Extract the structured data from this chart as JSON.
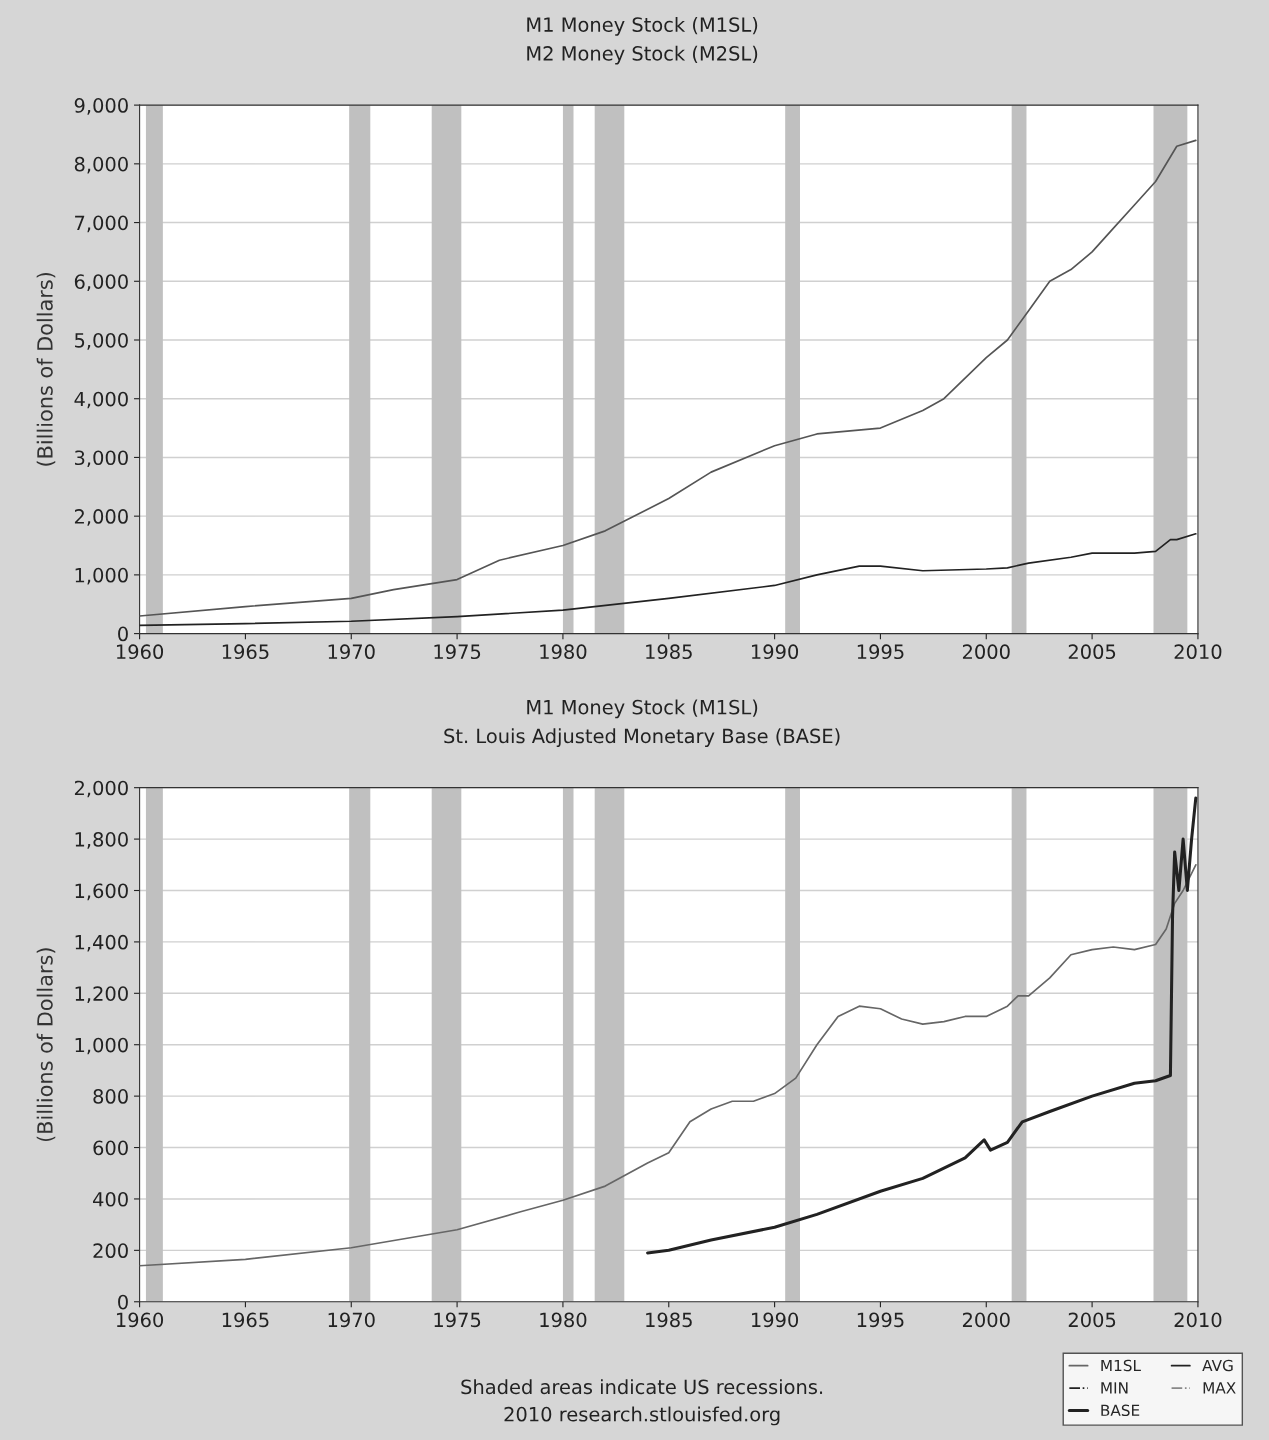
{
  "chart_data": [
    {
      "type": "line",
      "title": "M1 Money Stock (M1SL)",
      "subtitle": "M2 Money Stock (M2SL)",
      "ylabel": "(Billions of Dollars)",
      "xlim": [
        1960,
        2010
      ],
      "xticks": [
        1960,
        1965,
        1970,
        1975,
        1980,
        1985,
        1990,
        1995,
        2000,
        2005,
        2010
      ],
      "ylim": [
        0,
        9000
      ],
      "yticks": [
        {
          "value": 0,
          "label": "0"
        },
        {
          "value": 1000,
          "label": "1,000"
        },
        {
          "value": 2000,
          "label": "2,000"
        },
        {
          "value": 3000,
          "label": "3,000"
        },
        {
          "value": 4000,
          "label": "4,000"
        },
        {
          "value": 5000,
          "label": "5,000"
        },
        {
          "value": 6000,
          "label": "6,000"
        },
        {
          "value": 7000,
          "label": "7,000"
        },
        {
          "value": 8000,
          "label": "8,000"
        },
        {
          "value": 9000,
          "label": "9,000"
        }
      ],
      "grid": "y",
      "legend": false,
      "bands": [
        {
          "axis": "x",
          "from": 1960.3,
          "to": 1961.1,
          "color": "#c0c0c0"
        },
        {
          "axis": "x",
          "from": 1969.9,
          "to": 1970.9,
          "color": "#c0c0c0"
        },
        {
          "axis": "x",
          "from": 1973.8,
          "to": 1975.2,
          "color": "#c0c0c0"
        },
        {
          "axis": "x",
          "from": 1980.0,
          "to": 1980.5,
          "color": "#c0c0c0"
        },
        {
          "axis": "x",
          "from": 1981.5,
          "to": 1982.9,
          "color": "#c0c0c0"
        },
        {
          "axis": "x",
          "from": 1990.5,
          "to": 1991.2,
          "color": "#c0c0c0"
        },
        {
          "axis": "x",
          "from": 2001.2,
          "to": 2001.9,
          "color": "#c0c0c0"
        },
        {
          "axis": "x",
          "from": 2007.9,
          "to": 2009.5,
          "color": "#c0c0c0"
        }
      ],
      "series": [
        {
          "color": "#555555",
          "x": [
            1960,
            1965,
            1970,
            1972,
            1975,
            1977,
            1980,
            1982,
            1985,
            1987,
            1990,
            1992,
            1995,
            1997,
            1998,
            2000,
            2001,
            2002,
            2003,
            2004,
            2005,
            2006,
            2007,
            2008,
            2009,
            2009.9
          ],
          "values": [
            300,
            460,
            600,
            750,
            920,
            1250,
            1500,
            1750,
            2300,
            2750,
            3200,
            3400,
            3500,
            3800,
            4000,
            4700,
            5000,
            5500,
            6000,
            6200,
            6500,
            6900,
            7300,
            7700,
            8300,
            8400
          ]
        },
        {
          "color": "#222222",
          "x": [
            1960,
            1965,
            1970,
            1975,
            1980,
            1985,
            1990,
            1992,
            1994,
            1995,
            1997,
            2000,
            2001,
            2002,
            2004,
            2005,
            2007,
            2008,
            2008.7,
            2009,
            2009.9
          ],
          "values": [
            140,
            170,
            210,
            290,
            400,
            600,
            820,
            1000,
            1150,
            1150,
            1070,
            1100,
            1120,
            1200,
            1300,
            1370,
            1370,
            1400,
            1600,
            1600,
            1700
          ]
        }
      ]
    },
    {
      "type": "line",
      "title": "M1 Money Stock (M1SL)",
      "subtitle": "St. Louis Adjusted Monetary Base (BASE)",
      "ylabel": "(Billions of Dollars)",
      "xlim": [
        1960,
        2010
      ],
      "xticks": [
        1960,
        1965,
        1970,
        1975,
        1980,
        1985,
        1990,
        1995,
        2000,
        2005,
        2010
      ],
      "ylim": [
        0,
        2000
      ],
      "yticks": [
        {
          "value": 0,
          "label": "0"
        },
        {
          "value": 200,
          "label": "200"
        },
        {
          "value": 400,
          "label": "400"
        },
        {
          "value": 600,
          "label": "600"
        },
        {
          "value": 800,
          "label": "800"
        },
        {
          "value": 1000,
          "label": "1,000"
        },
        {
          "value": 1200,
          "label": "1,200"
        },
        {
          "value": 1400,
          "label": "1,400"
        },
        {
          "value": 1600,
          "label": "1,600"
        },
        {
          "value": 1800,
          "label": "1,800"
        },
        {
          "value": 2000,
          "label": "2,000"
        }
      ],
      "grid": "y",
      "legend": "bottom right",
      "annotations": [
        "Shaded areas indicate US recessions.",
        "2010 research.stlouisfed.org"
      ],
      "bands": [
        {
          "axis": "x",
          "from": 1960.3,
          "to": 1961.1,
          "color": "#c0c0c0"
        },
        {
          "axis": "x",
          "from": 1969.9,
          "to": 1970.9,
          "color": "#c0c0c0"
        },
        {
          "axis": "x",
          "from": 1973.8,
          "to": 1975.2,
          "color": "#c0c0c0"
        },
        {
          "axis": "x",
          "from": 1980.0,
          "to": 1980.5,
          "color": "#c0c0c0"
        },
        {
          "axis": "x",
          "from": 1981.5,
          "to": 1982.9,
          "color": "#c0c0c0"
        },
        {
          "axis": "x",
          "from": 1990.5,
          "to": 1991.2,
          "color": "#c0c0c0"
        },
        {
          "axis": "x",
          "from": 2001.2,
          "to": 2001.9,
          "color": "#c0c0c0"
        },
        {
          "axis": "x",
          "from": 2007.9,
          "to": 2009.5,
          "color": "#c0c0c0"
        }
      ],
      "series": [
        {
          "name": "M1SL",
          "color": "#666666",
          "x": [
            1960,
            1965,
            1970,
            1975,
            1978,
            1980,
            1982,
            1984,
            1985,
            1986,
            1987,
            1988,
            1989,
            1990,
            1991,
            1992,
            1993,
            1994,
            1995,
            1996,
            1997,
            1998,
            1999,
            2000,
            2001,
            2001.5,
            2002,
            2003,
            2004,
            2005,
            2006,
            2007,
            2008,
            2008.5,
            2008.9,
            2009.3,
            2009.9
          ],
          "values": [
            140,
            165,
            210,
            280,
            350,
            395,
            450,
            540,
            580,
            700,
            750,
            780,
            780,
            810,
            870,
            1000,
            1110,
            1150,
            1140,
            1100,
            1080,
            1090,
            1110,
            1110,
            1150,
            1190,
            1190,
            1260,
            1350,
            1370,
            1380,
            1370,
            1390,
            1450,
            1550,
            1600,
            1700
          ]
        },
        {
          "name": "MIN",
          "color": "#222222",
          "line_style": "dashdot"
        },
        {
          "name": "BASE",
          "color": "#222222",
          "x": [
            1984,
            1985,
            1987,
            1990,
            1992,
            1995,
            1997,
            1999,
            1999.9,
            2000.2,
            2001,
            2001.7,
            2003,
            2005,
            2007,
            2008,
            2008.7,
            2008.8,
            2008.9,
            2009.1,
            2009.3,
            2009.5,
            2009.7,
            2009.9
          ],
          "values": [
            190,
            200,
            240,
            290,
            340,
            430,
            480,
            560,
            630,
            590,
            620,
            700,
            740,
            800,
            850,
            860,
            880,
            1500,
            1750,
            1600,
            1800,
            1600,
            1800,
            1960
          ]
        },
        {
          "name": "AVG",
          "color": "#222222"
        },
        {
          "name": "MAX",
          "color": "#888888",
          "line_style": "dashdot"
        }
      ]
    }
  ]
}
